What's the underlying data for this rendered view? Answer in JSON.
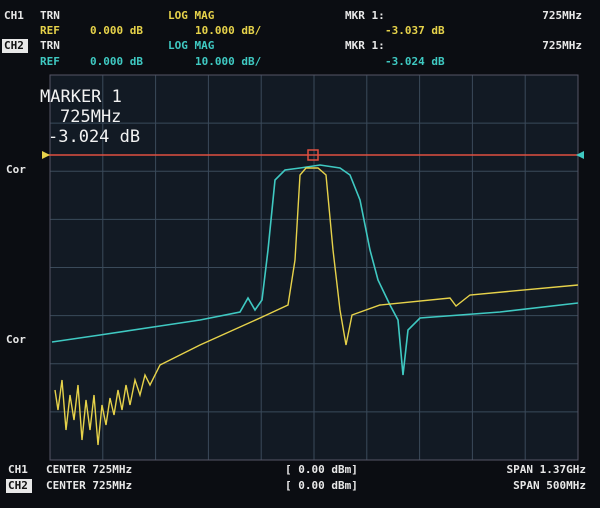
{
  "channels": [
    {
      "id": "CH1",
      "trace": "TRN",
      "format": "LOG MAG",
      "ref": "REF",
      "ref_value": "0.000 dB",
      "scale": "10.000 dB/",
      "marker": "MKR 1:",
      "marker_freq": "725MHz",
      "marker_value": "-3.037 dB"
    },
    {
      "id": "CH2",
      "trace": "TRN",
      "format": "LOG MAG",
      "ref": "REF",
      "ref_value": "0.000 dB",
      "scale": "10.000 dB/",
      "marker": "MKR 1:",
      "marker_freq": "725MHz",
      "marker_value": "-3.024 dB"
    }
  ],
  "marker_readout": {
    "title": "MARKER 1",
    "freq": "725MHz",
    "value": "-3.024 dB"
  },
  "side_labels": [
    "Cor",
    "Cor"
  ],
  "footer": [
    {
      "channel": "CH1",
      "center": "CENTER 725MHz",
      "power": "[ 0.00 dBm]",
      "span": "SPAN 1.37GHz"
    },
    {
      "channel": "CH2",
      "center": "CENTER 725MHz",
      "power": "[ 0.00 dBm]",
      "span": "SPAN 500MHz"
    }
  ]
}
